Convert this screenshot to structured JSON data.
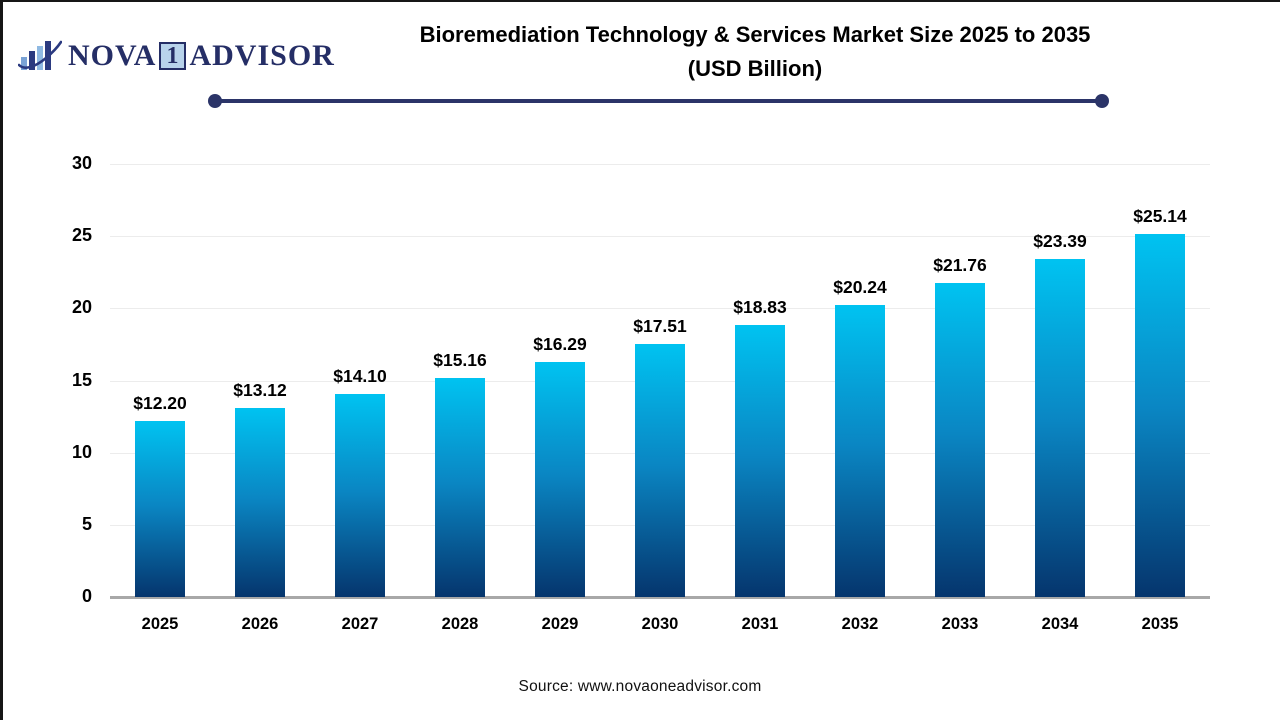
{
  "logo": {
    "part1": "NOVA",
    "part2": "1",
    "part3": "ADVISOR"
  },
  "header": {
    "title_line1": "Bioremediation Technology & Services Market Size 2025 to 2035",
    "title_line2": "(USD Billion)"
  },
  "footer": {
    "source": "Source: www.novaoneadvisor.com"
  },
  "colors": {
    "bar_gradient_top": "#00c3f1",
    "bar_gradient_mid": "#0a86c3",
    "bar_gradient_bottom": "#05356d",
    "divider_navy": "#2b3468",
    "logo_navy": "#252e66",
    "logo_badge_fill": "#b8d3eb",
    "gridline": "#ececec",
    "baseline": "#a8a8a8",
    "text": "#000000"
  },
  "chart_data": {
    "type": "bar",
    "title": "Bioremediation Technology & Services Market Size 2025 to 2035 (USD Billion)",
    "categories": [
      "2025",
      "2026",
      "2027",
      "2028",
      "2029",
      "2030",
      "2031",
      "2032",
      "2033",
      "2034",
      "2035"
    ],
    "values": [
      12.2,
      13.12,
      14.1,
      15.16,
      16.29,
      17.51,
      18.83,
      20.24,
      21.76,
      23.39,
      25.14
    ],
    "value_labels": [
      "$12.20",
      "$13.12",
      "$14.10",
      "$15.16",
      "$16.29",
      "$17.51",
      "$18.83",
      "$20.24",
      "$21.76",
      "$23.39",
      "$25.14"
    ],
    "xlabel": "",
    "ylabel": "",
    "ylim": [
      0,
      30
    ],
    "yticks": [
      0,
      5,
      10,
      15,
      20,
      25,
      30
    ],
    "grid": "horizontal",
    "legend": "none",
    "source": "Source: www.novaoneadvisor.com"
  }
}
